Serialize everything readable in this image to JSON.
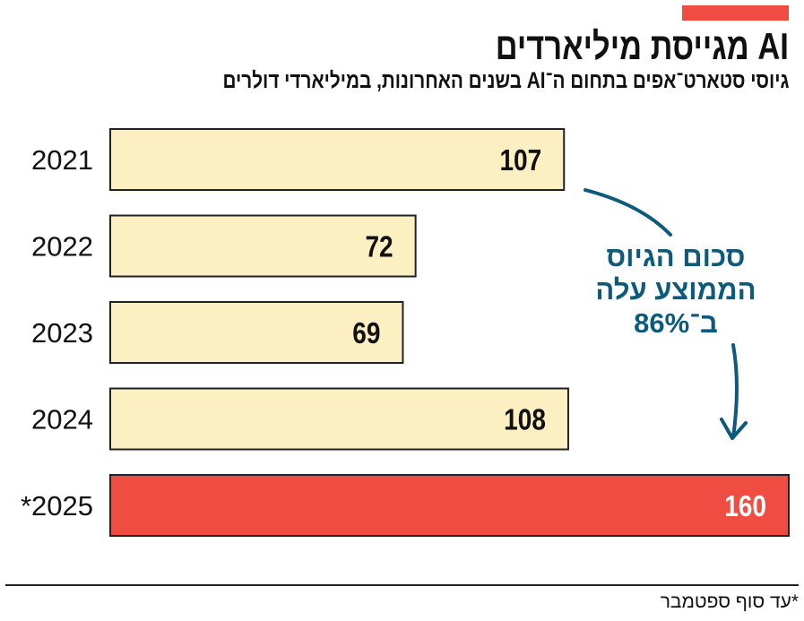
{
  "header": {
    "title": "AI מגייסת מיליארדים",
    "subtitle": "גיוסי סטארט־אפים בתחום ה־AI בשנים האחרונות, במיליארדי דולרים"
  },
  "chart_data": {
    "type": "bar",
    "orientation": "horizontal",
    "title": "AI מגייסת מיליארדים",
    "subtitle": "גיוסי סטארט־אפים בתחום ה־AI בשנים האחרונות, במיליארדי דולרים",
    "categories": [
      "2021",
      "2022",
      "2023",
      "2024",
      "*2025"
    ],
    "values": [
      107,
      72,
      69,
      108,
      160
    ],
    "xlim": [
      0,
      160
    ],
    "grid": false,
    "colors": {
      "default": "#fcefc2",
      "highlight": "#ef4c42",
      "annotation": "#0d5a7d"
    },
    "highlight_index": 4,
    "annotation": "סכום הגיוס הממוצע עלה ב־86%"
  },
  "annotation": {
    "lines": [
      "סכום הגיוס",
      "הממוצע עלה",
      "ב־86%"
    ]
  },
  "footnote": "*עד סוף ספטמבר"
}
